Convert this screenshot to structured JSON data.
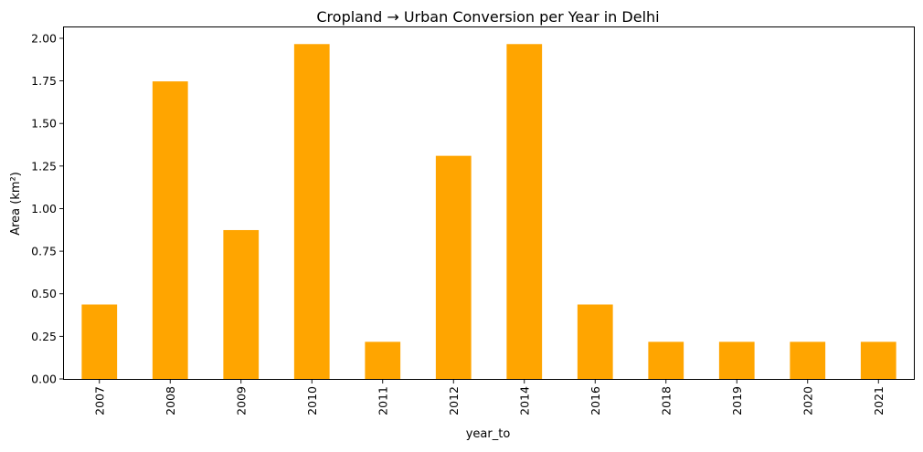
{
  "chart_data": {
    "type": "bar",
    "title": "Cropland → Urban Conversion per Year in Delhi",
    "xlabel": "year_to",
    "ylabel": "Area (km²)",
    "categories": [
      "2007",
      "2008",
      "2009",
      "2010",
      "2011",
      "2012",
      "2014",
      "2016",
      "2018",
      "2019",
      "2020",
      "2021"
    ],
    "values": [
      0.437,
      1.747,
      0.874,
      1.966,
      0.218,
      1.31,
      1.966,
      0.437,
      0.218,
      0.218,
      0.218,
      0.218
    ],
    "ylim": [
      0,
      2.064
    ],
    "yticks": [
      "0.00",
      "0.25",
      "0.50",
      "0.75",
      "1.00",
      "1.25",
      "1.50",
      "1.75",
      "2.00"
    ],
    "bar_color": "#ffa500",
    "grid": false,
    "legend": "none"
  }
}
